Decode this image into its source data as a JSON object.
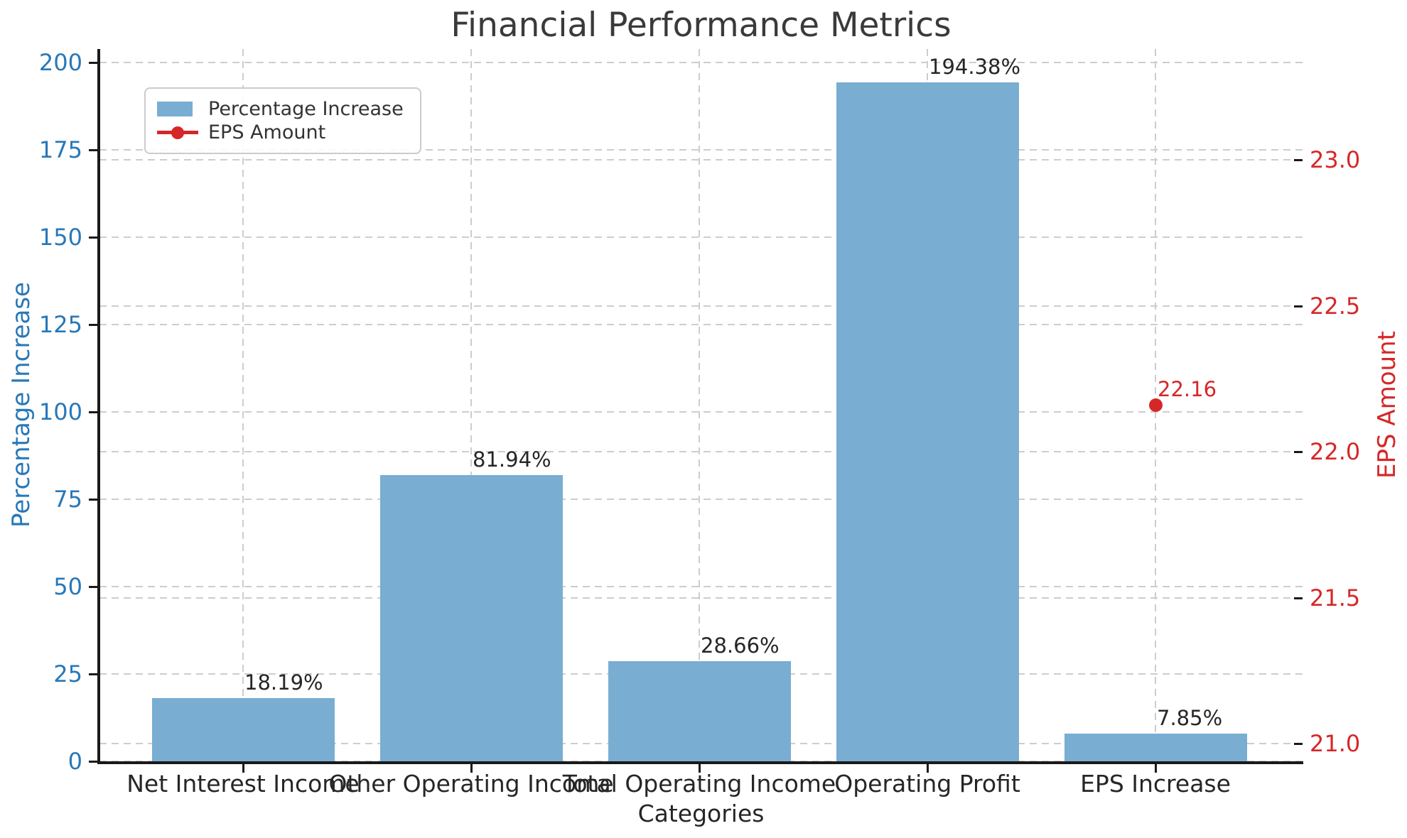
{
  "title": "Financial Performance Metrics",
  "colors": {
    "bar_fill": "#79add2",
    "left_axis_text": "#2878b8",
    "right_axis_text": "#d62728",
    "point_red": "#d62728",
    "value_label_text": "#262626",
    "grid": "#cdcdcd",
    "spine": "#1a1a1a",
    "title_text": "#3a3a3a"
  },
  "chart_data": {
    "type": "bar",
    "title": "Financial Performance Metrics",
    "xlabel": "Categories",
    "categories": [
      "Net Interest Income",
      "Other Operating Income",
      "Total Operating Income",
      "Operating Profit",
      "EPS Increase"
    ],
    "series": [
      {
        "name": "Percentage Increase",
        "type": "bar",
        "axis": "left",
        "values": [
          18.19,
          81.94,
          28.66,
          194.38,
          7.85
        ],
        "value_labels": [
          "18.19%",
          "81.94%",
          "28.66%",
          "194.38%",
          "7.85%"
        ]
      },
      {
        "name": "EPS Amount",
        "type": "scatter",
        "axis": "right",
        "points": [
          {
            "category": "EPS Increase",
            "x_index": 4,
            "value": 22.16,
            "value_label": "22.16"
          }
        ]
      }
    ],
    "left_axis": {
      "label": "Percentage Increase",
      "ticks": [
        0,
        25,
        50,
        75,
        100,
        125,
        150,
        175,
        200
      ],
      "tick_labels": [
        "0",
        "25",
        "50",
        "75",
        "100",
        "125",
        "150",
        "175",
        "200"
      ],
      "range": [
        0,
        203.9
      ]
    },
    "right_axis": {
      "label": "EPS Amount",
      "ticks": [
        21.0,
        21.5,
        22.0,
        22.5,
        23.0
      ],
      "tick_labels": [
        "21.0",
        "21.5",
        "22.0",
        "22.5",
        "23.0"
      ],
      "range": [
        20.94,
        23.38
      ]
    },
    "grid": true,
    "grid_style": "dashed",
    "legend_position": "upper left"
  },
  "legend": {
    "items": [
      {
        "label": "Percentage Increase",
        "marker": "bar-swatch"
      },
      {
        "label": "EPS Amount",
        "marker": "line-dot"
      }
    ]
  }
}
